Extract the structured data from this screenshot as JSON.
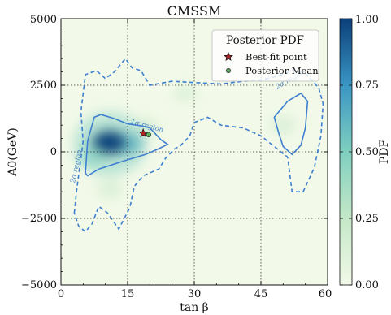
{
  "chart_data": {
    "type": "heatmap",
    "title": "CMSSM",
    "xlabel": "tan β",
    "ylabel": "A0(GeV)",
    "xlim": [
      0,
      60
    ],
    "ylim": [
      -5000,
      5000
    ],
    "x_ticks": [
      "0",
      "15",
      "30",
      "45",
      "60"
    ],
    "y_ticks": [
      "−5000",
      "−2500",
      "0",
      "2500",
      "5000"
    ],
    "grid": true,
    "colorbar": {
      "label": "PDF",
      "range": [
        0,
        1
      ],
      "ticks": [
        "0.00",
        "0.25",
        "0.50",
        "0.75",
        "1.00"
      ],
      "color_low": "#f2f9e8",
      "color_mid": "#7fcfbf",
      "color_high": "#0b3f7a"
    },
    "legend": {
      "title": "Posterior PDF",
      "placement": "top-right",
      "entries": [
        {
          "label": "Best-fit point",
          "marker": "star",
          "color": "#b22222"
        },
        {
          "label": "Posterior Mean",
          "marker": "circle",
          "color": "#5db35d"
        }
      ]
    },
    "best_fit": {
      "x": 18.5,
      "y": 700
    },
    "posterior_mean": {
      "x": 19.7,
      "y": 650
    },
    "pdf_peaks": [
      {
        "x": 11,
        "y": 350,
        "height": 1.0
      },
      {
        "x": 15,
        "y": 300,
        "height": 0.55
      },
      {
        "x": 7,
        "y": -200,
        "height": 0.35
      },
      {
        "x": 11,
        "y": -1400,
        "height": 0.2
      },
      {
        "x": 19,
        "y": 900,
        "height": 0.25
      },
      {
        "x": 50,
        "y": 1000,
        "height": 0.18
      },
      {
        "x": 28,
        "y": 2200,
        "height": 0.12
      }
    ],
    "contour_1sigma": [
      [
        [
          5.5,
          -800
        ],
        [
          6,
          400
        ],
        [
          7.5,
          1300
        ],
        [
          9,
          1400
        ],
        [
          12,
          1250
        ],
        [
          15,
          1050
        ],
        [
          18,
          980
        ],
        [
          20,
          900
        ],
        [
          22.5,
          450
        ],
        [
          24,
          280
        ],
        [
          22,
          120
        ],
        [
          19,
          -100
        ],
        [
          14,
          -350
        ],
        [
          8.5,
          -650
        ],
        [
          6,
          -900
        ],
        [
          5.5,
          -800
        ]
      ],
      [
        [
          48,
          1300
        ],
        [
          51,
          1900
        ],
        [
          54,
          2200
        ],
        [
          55.5,
          1900
        ],
        [
          55,
          900
        ],
        [
          54,
          250
        ],
        [
          52,
          -100
        ],
        [
          50,
          200
        ],
        [
          49,
          700
        ],
        [
          48,
          1300
        ]
      ]
    ],
    "contour_2sigma": [
      [
        [
          3,
          -2300
        ],
        [
          3.5,
          -1500
        ],
        [
          5,
          400
        ],
        [
          4.5,
          1500
        ],
        [
          5.5,
          2900
        ],
        [
          8,
          3050
        ],
        [
          10,
          2750
        ],
        [
          12,
          3000
        ],
        [
          14.5,
          3500
        ],
        [
          16,
          3150
        ],
        [
          18,
          3050
        ],
        [
          20,
          2500
        ],
        [
          25,
          2650
        ],
        [
          30,
          2600
        ],
        [
          36,
          2550
        ],
        [
          41,
          2650
        ],
        [
          45,
          2700
        ],
        [
          49,
          2850
        ],
        [
          52,
          3050
        ],
        [
          55,
          2950
        ],
        [
          58,
          2400
        ],
        [
          59,
          1800
        ],
        [
          58.5,
          600
        ],
        [
          57,
          -600
        ],
        [
          54.5,
          -1500
        ],
        [
          52,
          -1500
        ],
        [
          51,
          -200
        ],
        [
          45,
          600
        ],
        [
          41,
          900
        ],
        [
          36,
          1000
        ],
        [
          33,
          1300
        ],
        [
          30,
          1100
        ],
        [
          29,
          600
        ],
        [
          27,
          250
        ],
        [
          25.5,
          100
        ],
        [
          23.5,
          -250
        ],
        [
          22,
          -650
        ],
        [
          18.5,
          -900
        ],
        [
          16.5,
          -1300
        ],
        [
          15.5,
          -2100
        ],
        [
          13,
          -2900
        ],
        [
          10.5,
          -2300
        ],
        [
          8.5,
          -2050
        ],
        [
          7,
          -2700
        ],
        [
          5.5,
          -3000
        ],
        [
          4,
          -2800
        ],
        [
          3,
          -2300
        ]
      ]
    ],
    "region_labels": {
      "sigma1": "1σ region",
      "sigma2": "2σ region"
    }
  }
}
